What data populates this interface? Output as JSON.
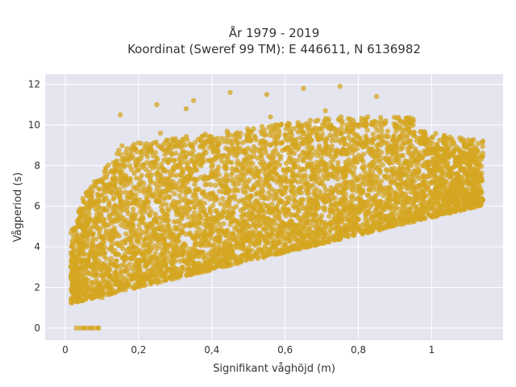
{
  "chart_data": {
    "type": "scatter",
    "title_lines": [
      "År 1979 - 2019",
      "Koordinat (Sweref 99 TM): E 446611, N 6136982"
    ],
    "xlabel": "Signifikant våghöjd (m)",
    "ylabel": "Vågperiod (s)",
    "xlim": [
      -0.055,
      1.195
    ],
    "ylim": [
      -0.6,
      12.5
    ],
    "x_ticks": [
      0,
      0.2,
      0.4,
      0.6,
      0.8,
      1
    ],
    "x_tick_labels": [
      "0",
      "0,2",
      "0,4",
      "0,6",
      "0,8",
      "1"
    ],
    "y_ticks": [
      0,
      2,
      4,
      6,
      8,
      10,
      12
    ],
    "y_tick_labels": [
      "0",
      "2",
      "4",
      "6",
      "8",
      "10",
      "12"
    ],
    "grid": true,
    "legend": "none",
    "marker_color": "#d4a520",
    "background_color": "#e5e5f0",
    "series": [
      {
        "values_description": "dense cloud: x 0.02–1.14 m, y roughly between lower edge ~1.2+4.3x s and upper edge ~10.5 s; zero-period points at x 0.03–0.09",
        "x": [
          0.03,
          0.04,
          0.05,
          0.06,
          0.07,
          0.08,
          0.09,
          0.05,
          0.07,
          0.09,
          0.02,
          0.03,
          0.05,
          0.06,
          0.08,
          0.1,
          0.12,
          0.14,
          0.16,
          0.18,
          0.2,
          0.22,
          0.25,
          0.28,
          0.3,
          0.32,
          0.35,
          0.38,
          0.4,
          0.42,
          0.45,
          0.48,
          0.5,
          0.52,
          0.55,
          0.58,
          0.6,
          0.62,
          0.65,
          0.68,
          0.7,
          0.72,
          0.75,
          0.78,
          0.8,
          0.82,
          0.85,
          0.88,
          0.9,
          0.92,
          0.95,
          0.98,
          1.0,
          1.02,
          1.05,
          1.08,
          1.1,
          1.12,
          1.14,
          0.15,
          0.25,
          0.35,
          0.45,
          0.55,
          0.65,
          0.75,
          0.85,
          0.95,
          0.3,
          0.4,
          0.5,
          0.6,
          0.7,
          0.8,
          0.26,
          0.33,
          0.41,
          0.47,
          0.56,
          0.63,
          0.71,
          0.76,
          0.84,
          0.9
        ],
        "y": [
          0,
          0,
          0,
          0,
          0,
          0,
          0,
          0,
          0,
          0,
          1.8,
          2.2,
          3.0,
          6.5,
          7.2,
          1.5,
          2.0,
          2.3,
          2.0,
          2.4,
          2.2,
          2.5,
          3.0,
          2.9,
          3.3,
          3.0,
          3.5,
          3.4,
          3.8,
          3.7,
          4.0,
          4.1,
          4.3,
          4.3,
          4.6,
          4.6,
          4.8,
          5.0,
          5.0,
          5.3,
          5.2,
          5.5,
          5.6,
          5.8,
          5.9,
          6.0,
          6.2,
          6.4,
          6.5,
          6.6,
          6.9,
          7.0,
          7.2,
          7.4,
          7.6,
          7.8,
          8.0,
          8.5,
          9.2,
          10.5,
          11.0,
          11.2,
          11.6,
          11.5,
          11.8,
          11.9,
          11.4,
          10.2,
          8.0,
          9.0,
          9.5,
          8.8,
          9.8,
          10.0,
          9.6,
          10.8,
          8.4,
          9.1,
          10.4,
          8.9,
          10.7,
          9.3,
          8.6,
          9.9
        ]
      }
    ]
  }
}
